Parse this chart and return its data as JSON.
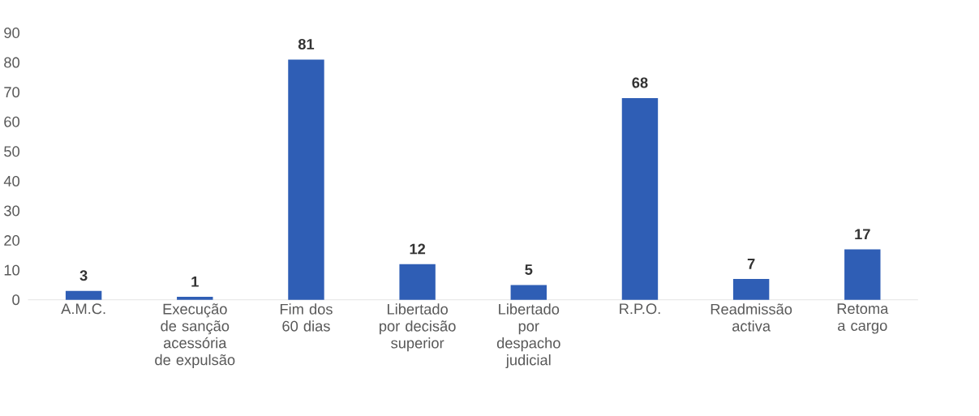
{
  "chart_data": {
    "type": "bar",
    "categories": [
      "A.M.C.",
      "Execução de sanção acessória de expulsão",
      "Fim dos 60 dias",
      "Libertado por decisão superior",
      "Libertado por despacho judicial",
      "R.P.O.",
      "Readmissão activa",
      "Retoma a cargo"
    ],
    "values": [
      3,
      1,
      81,
      12,
      5,
      68,
      7,
      17
    ],
    "color": "#2f5eb5",
    "ylim": [
      0,
      90
    ],
    "yticks": [
      0,
      10,
      20,
      30,
      40,
      50,
      60,
      70,
      80,
      90
    ],
    "data_labels": true
  }
}
